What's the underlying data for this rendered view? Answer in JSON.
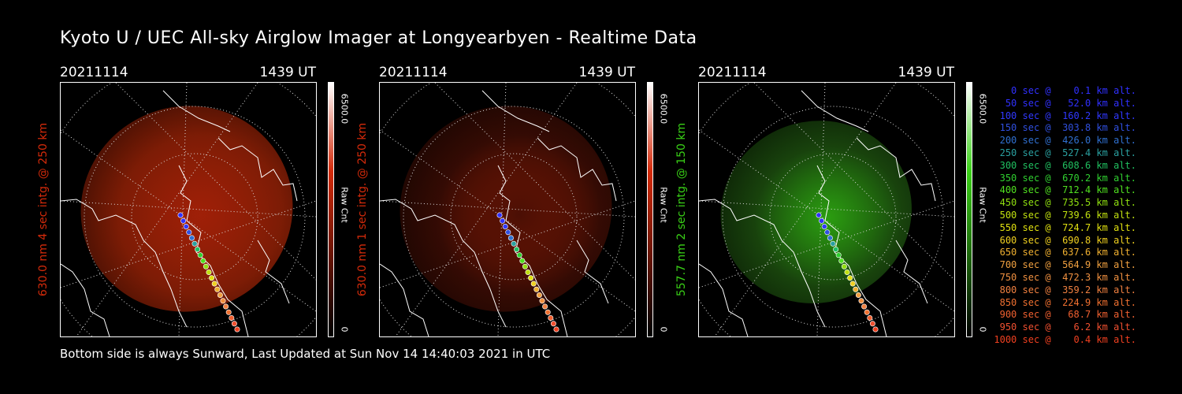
{
  "title": "Kyoto U / UEC All-sky Airglow Imager at Longyearbyen - Realtime Data",
  "footer": "Bottom side is always Sunward, Last Updated at Sun Nov 14 14:40:03 2021 in UTC",
  "panels": [
    {
      "date": "20211114",
      "time": "1439 UT",
      "ylabel": "630.0 nm 4 sec intg. @ 250 km",
      "cbar_max": "6500.0",
      "cbar_label": "Raw Cnt",
      "cbar_min": "0",
      "color": "#d42a0a",
      "glow_color": "#8a1f06"
    },
    {
      "date": "20211114",
      "time": "1439 UT",
      "ylabel": "630.0 nm 1 sec intg. @ 250 km",
      "cbar_max": "6500.0",
      "cbar_label": "Raw Cnt",
      "cbar_min": "0",
      "color": "#d42a0a",
      "glow_color": "#3a0c04"
    },
    {
      "date": "20211114",
      "time": "1439 UT",
      "ylabel": "557.7 nm 2 sec intg. @ 150 km",
      "cbar_max": "6500.0",
      "cbar_label": "Raw Cnt",
      "cbar_min": "0",
      "color": "#39d016",
      "glow_color": "#1b4a0e"
    }
  ],
  "legend": [
    {
      "text": "   0 sec @    0.1 km alt.",
      "color": "#3030ff"
    },
    {
      "text": "  50 sec @   52.0 km alt.",
      "color": "#3030ff"
    },
    {
      "text": " 100 sec @  160.2 km alt.",
      "color": "#3038ff"
    },
    {
      "text": " 150 sec @  303.8 km alt.",
      "color": "#3050e0"
    },
    {
      "text": " 200 sec @  426.0 km alt.",
      "color": "#3070d0"
    },
    {
      "text": " 250 sec @  527.4 km alt.",
      "color": "#2aa0a0"
    },
    {
      "text": " 300 sec @  608.6 km alt.",
      "color": "#20c060"
    },
    {
      "text": " 350 sec @  670.2 km alt.",
      "color": "#30d030"
    },
    {
      "text": " 400 sec @  712.4 km alt.",
      "color": "#50e020"
    },
    {
      "text": " 450 sec @  735.5 km alt.",
      "color": "#90e010"
    },
    {
      "text": " 500 sec @  739.6 km alt.",
      "color": "#c0e010"
    },
    {
      "text": " 550 sec @  724.7 km alt.",
      "color": "#e0e010"
    },
    {
      "text": " 600 sec @  690.8 km alt.",
      "color": "#f0d020"
    },
    {
      "text": " 650 sec @  637.6 km alt.",
      "color": "#f0b030"
    },
    {
      "text": " 700 sec @  564.9 km alt.",
      "color": "#f0a040"
    },
    {
      "text": " 750 sec @  472.3 km alt.",
      "color": "#f09040"
    },
    {
      "text": " 800 sec @  359.2 km alt.",
      "color": "#f08040"
    },
    {
      "text": " 850 sec @  224.9 km alt.",
      "color": "#f07030"
    },
    {
      "text": " 900 sec @   68.7 km alt.",
      "color": "#f06030"
    },
    {
      "text": " 950 sec @    6.2 km alt.",
      "color": "#f05030"
    },
    {
      "text": "1000 sec @    0.4 km alt.",
      "color": "#f04020"
    }
  ]
}
